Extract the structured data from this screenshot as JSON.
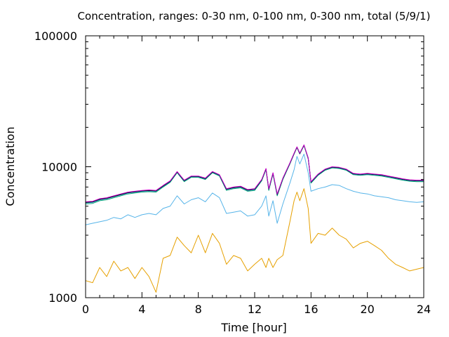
{
  "chart_data": {
    "type": "line",
    "title": "Concentration, ranges: 0-30 nm, 0-100 nm, 0-300 nm, total (5/9/1)",
    "xlabel": "Time [hour]",
    "ylabel": "Concentration",
    "xlim": [
      0,
      24
    ],
    "ylim": [
      1000,
      100000
    ],
    "yscale": "log",
    "grid": false,
    "x_ticks": [
      0,
      4,
      8,
      12,
      16,
      20,
      24
    ],
    "x_tick_labels": [
      "0",
      "4",
      "8",
      "12",
      "16",
      "20",
      "24"
    ],
    "y_ticks": [
      1000,
      10000,
      100000
    ],
    "y_tick_labels": [
      "1000",
      "10000",
      "100000"
    ],
    "x": [
      0,
      0.5,
      1,
      1.5,
      2,
      2.5,
      3,
      3.5,
      4,
      4.5,
      5,
      5.5,
      6,
      6.5,
      7,
      7.5,
      8,
      8.5,
      9,
      9.5,
      10,
      10.5,
      11,
      11.5,
      12,
      12.5,
      12.8,
      13,
      13.3,
      13.6,
      14,
      14.5,
      14.8,
      15,
      15.2,
      15.5,
      15.8,
      16,
      16.5,
      17,
      17.5,
      18,
      18.5,
      19,
      19.5,
      20,
      20.5,
      21,
      21.5,
      22,
      22.5,
      23,
      23.5,
      24
    ],
    "series": [
      {
        "color": "#e6a000",
        "values": [
          1350,
          1300,
          1700,
          1450,
          1900,
          1600,
          1700,
          1400,
          1700,
          1450,
          1100,
          2000,
          2100,
          2900,
          2500,
          2200,
          3000,
          2200,
          3100,
          2600,
          1800,
          2100,
          2000,
          1600,
          1800,
          2000,
          1700,
          2000,
          1700,
          1950,
          2100,
          3800,
          5500,
          6400,
          5500,
          6800,
          4800,
          2600,
          3100,
          3000,
          3400,
          3000,
          2800,
          2400,
          2600,
          2700,
          2500,
          2300,
          2000,
          1800,
          1700,
          1600,
          1650,
          1700
        ]
      },
      {
        "color": "#56b4e9",
        "values": [
          3600,
          3700,
          3800,
          3900,
          4100,
          4000,
          4300,
          4100,
          4300,
          4400,
          4300,
          4800,
          5000,
          6000,
          5200,
          5600,
          5800,
          5400,
          6300,
          5800,
          4400,
          4500,
          4600,
          4200,
          4300,
          5000,
          6000,
          4200,
          5500,
          3700,
          5200,
          7500,
          9500,
          12000,
          10500,
          12500,
          9000,
          6500,
          6800,
          7000,
          7300,
          7200,
          6800,
          6500,
          6300,
          6200,
          6000,
          5900,
          5800,
          5600,
          5500,
          5400,
          5350,
          5400
        ]
      },
      {
        "color": "#009e73",
        "values": [
          5200,
          5250,
          5500,
          5600,
          5800,
          6000,
          6200,
          6300,
          6400,
          6450,
          6400,
          7000,
          7600,
          9000,
          7700,
          8300,
          8300,
          8000,
          9000,
          8500,
          6600,
          6800,
          6900,
          6500,
          6600,
          7800,
          9500,
          6600,
          8800,
          6000,
          8000,
          10500,
          12500,
          14000,
          12500,
          14500,
          11500,
          7500,
          8600,
          9400,
          9800,
          9700,
          9400,
          8700,
          8600,
          8700,
          8600,
          8500,
          8300,
          8100,
          7900,
          7750,
          7700,
          7700
        ]
      },
      {
        "color": "#0072b2",
        "values": [
          5300,
          5350,
          5600,
          5700,
          5900,
          6100,
          6300,
          6400,
          6500,
          6550,
          6500,
          7100,
          7700,
          9100,
          7800,
          8400,
          8400,
          8100,
          9100,
          8600,
          6700,
          6900,
          7000,
          6600,
          6700,
          7900,
          9600,
          6700,
          8900,
          6100,
          8100,
          10600,
          12600,
          14100,
          12600,
          14600,
          11600,
          7600,
          8700,
          9500,
          9900,
          9800,
          9500,
          8800,
          8700,
          8800,
          8700,
          8600,
          8400,
          8200,
          8000,
          7850,
          7800,
          7800
        ]
      },
      {
        "color": "#000000",
        "values": [
          5350,
          5400,
          5650,
          5750,
          5950,
          6150,
          6350,
          6450,
          6550,
          6600,
          6550,
          7150,
          7750,
          9150,
          7850,
          8450,
          8450,
          8150,
          9150,
          8650,
          6750,
          6950,
          7050,
          6650,
          6750,
          7950,
          9650,
          6750,
          8950,
          6150,
          8150,
          10650,
          12650,
          14150,
          12650,
          14650,
          11650,
          7650,
          8750,
          9550,
          9950,
          9850,
          9550,
          8850,
          8750,
          8850,
          8750,
          8650,
          8450,
          8250,
          8050,
          7900,
          7850,
          7850
        ]
      },
      {
        "color": "#cc00cc",
        "values": [
          5400,
          5450,
          5700,
          5800,
          6000,
          6200,
          6400,
          6500,
          6600,
          6650,
          6600,
          7200,
          7800,
          9200,
          7900,
          8500,
          8500,
          8200,
          9200,
          8700,
          6800,
          7000,
          7100,
          6700,
          6800,
          8000,
          9700,
          6800,
          9000,
          6200,
          8200,
          10700,
          12700,
          14200,
          12700,
          14700,
          11700,
          7700,
          8800,
          9600,
          10000,
          9900,
          9600,
          8900,
          8800,
          8900,
          8800,
          8700,
          8500,
          8300,
          8100,
          7950,
          7900,
          7900
        ]
      }
    ]
  }
}
